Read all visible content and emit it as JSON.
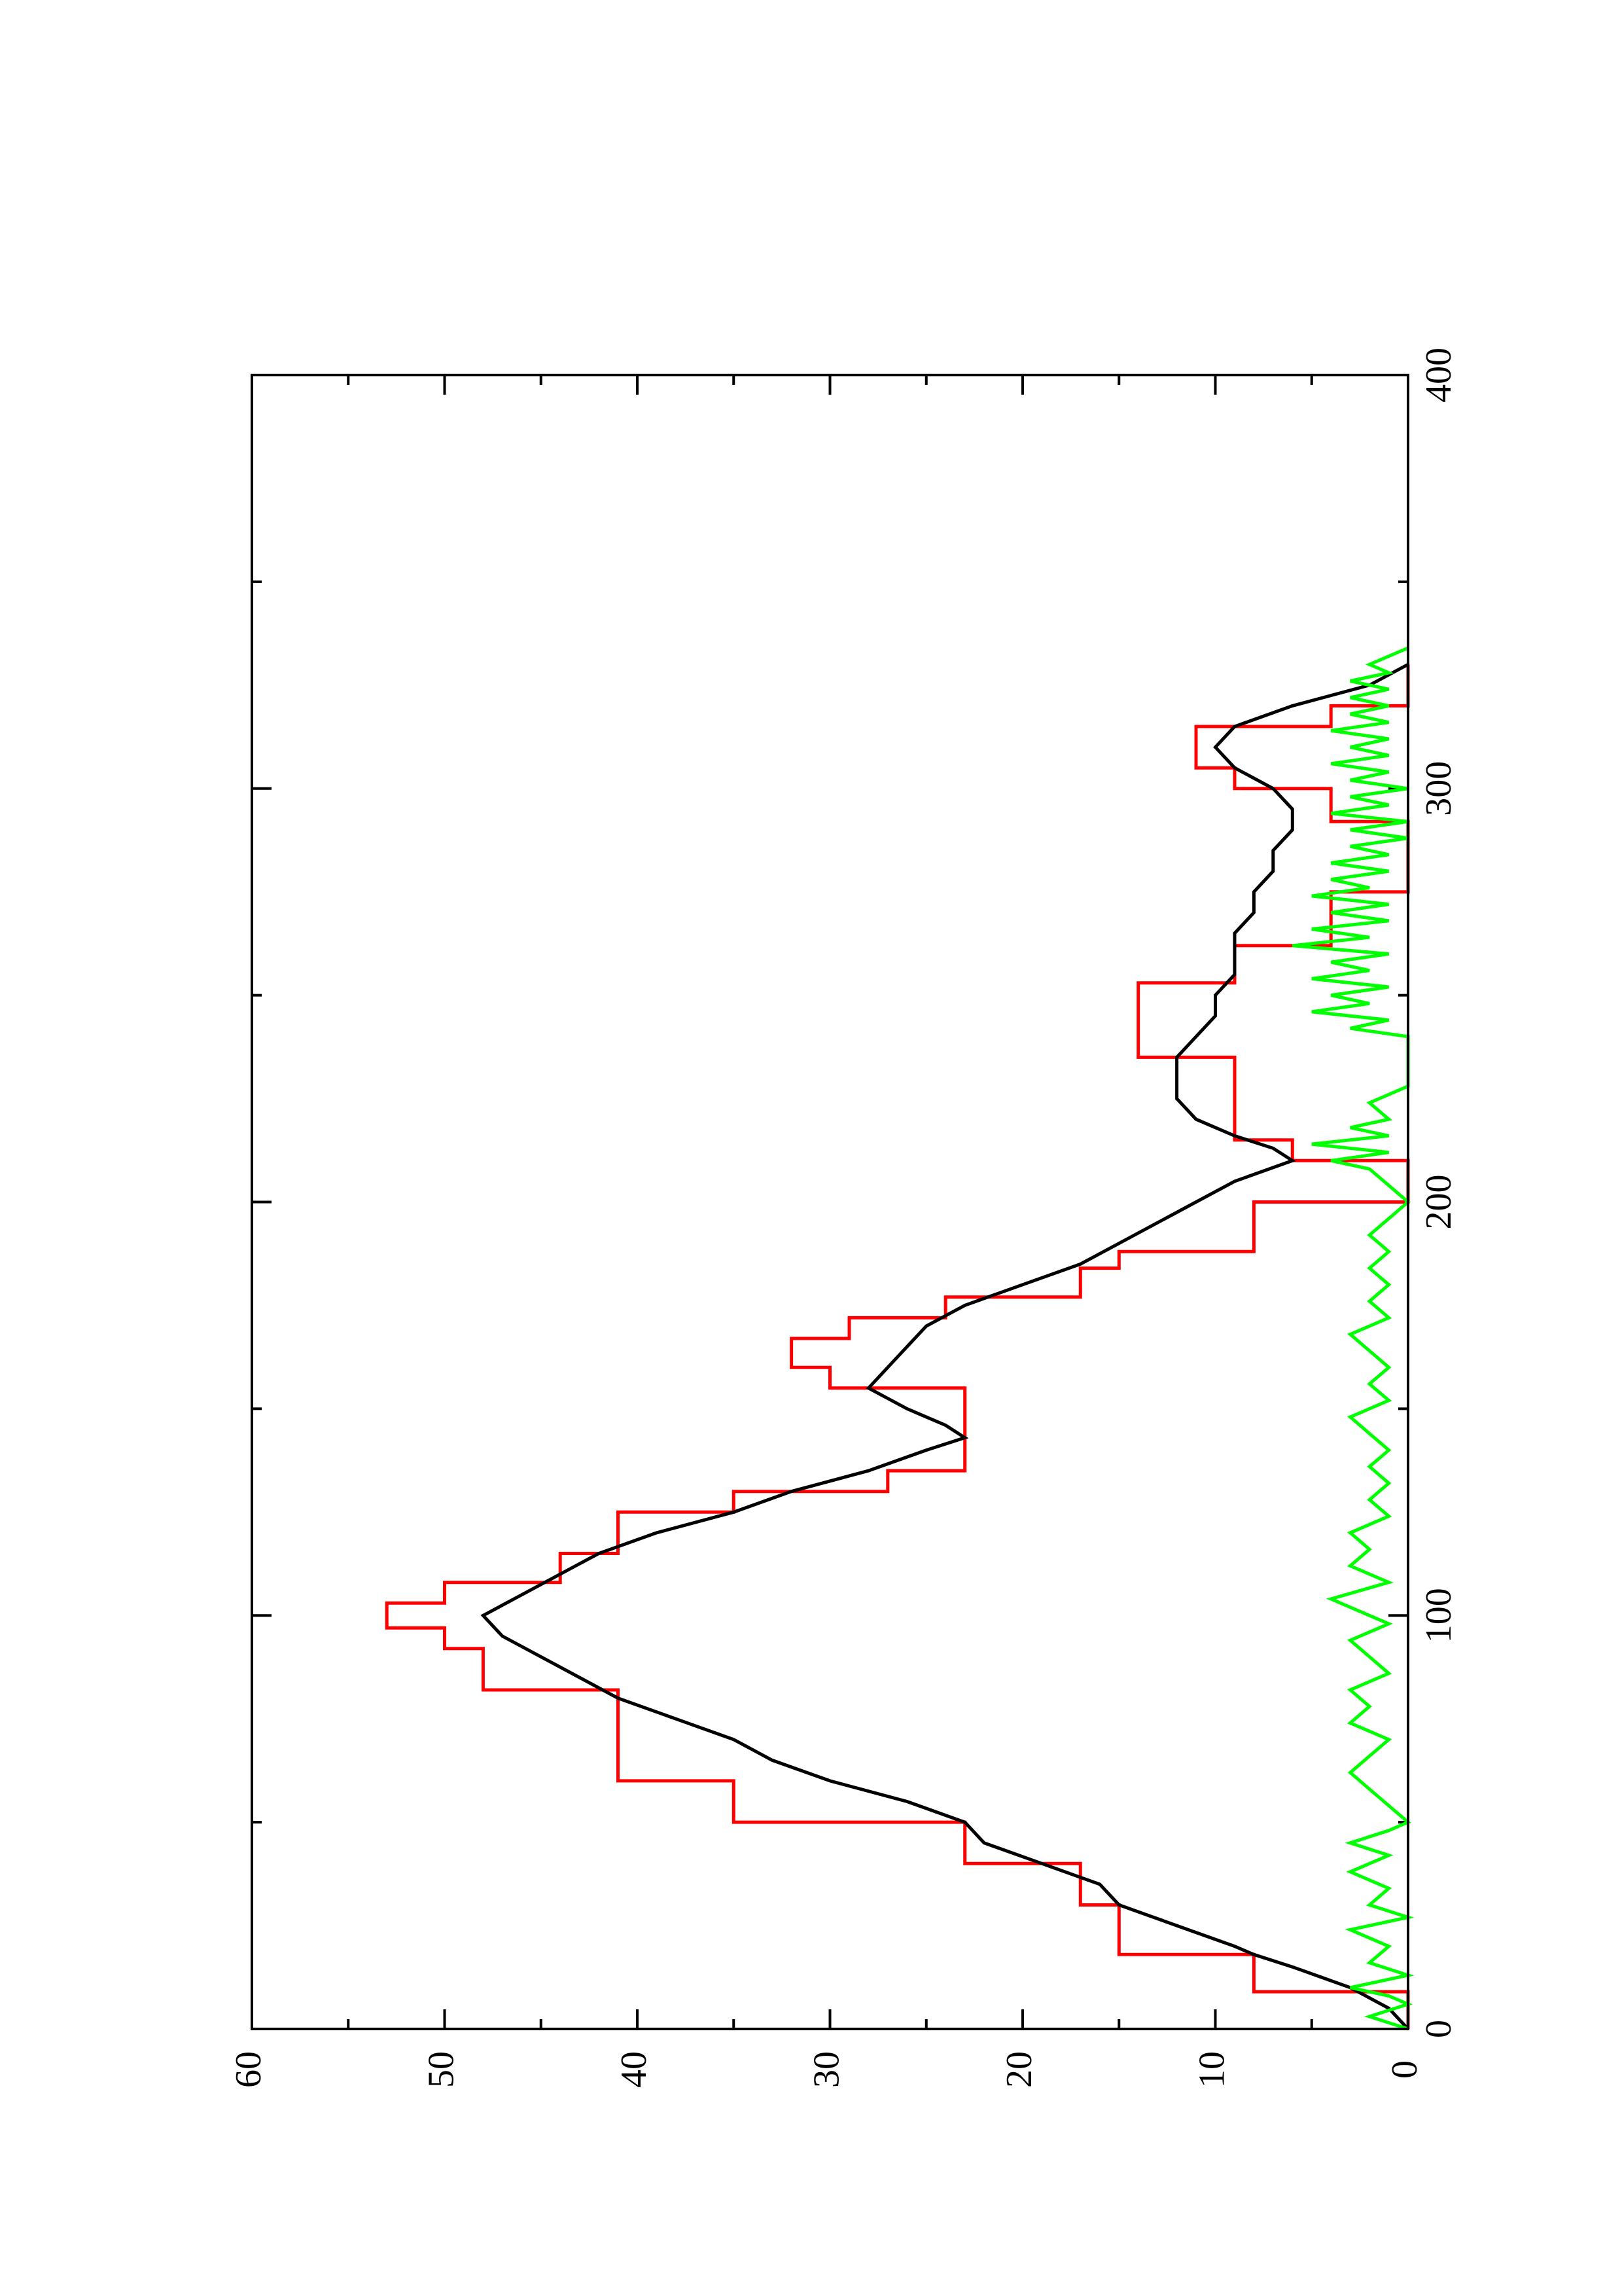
{
  "chart_data": {
    "type": "line",
    "orientation": "rotated-90-ccw",
    "title": "",
    "xlabel": "",
    "ylabel": "",
    "xlim": [
      0,
      400
    ],
    "ylim": [
      0,
      60
    ],
    "x_ticks": [
      0,
      100,
      200,
      300,
      400
    ],
    "x_tick_labels": [
      "0",
      "100",
      "200",
      "300",
      "400"
    ],
    "x_minor_ticks": [
      50,
      150,
      250,
      350
    ],
    "y_ticks": [
      0,
      10,
      20,
      30,
      40,
      50,
      60
    ],
    "y_tick_labels": [
      "0",
      "10",
      "20",
      "30",
      "40",
      "50",
      "60"
    ],
    "y_minor_ticks": [
      5,
      15,
      25,
      35,
      45,
      55
    ],
    "grid": false,
    "legend": "none",
    "series": [
      {
        "color": "#ff0000",
        "style": "step",
        "points": [
          [
            0,
            0
          ],
          [
            9,
            0
          ],
          [
            9,
            8
          ],
          [
            18,
            8
          ],
          [
            18,
            15
          ],
          [
            30,
            15
          ],
          [
            30,
            17
          ],
          [
            40,
            17
          ],
          [
            40,
            23
          ],
          [
            50,
            23
          ],
          [
            50,
            35
          ],
          [
            60,
            35
          ],
          [
            60,
            41
          ],
          [
            82,
            41
          ],
          [
            82,
            48
          ],
          [
            92,
            48
          ],
          [
            92,
            50
          ],
          [
            97,
            50
          ],
          [
            97,
            53
          ],
          [
            103,
            53
          ],
          [
            103,
            50
          ],
          [
            108,
            50
          ],
          [
            108,
            44
          ],
          [
            115,
            44
          ],
          [
            115,
            41
          ],
          [
            125,
            41
          ],
          [
            125,
            35
          ],
          [
            130,
            35
          ],
          [
            130,
            27
          ],
          [
            135,
            27
          ],
          [
            135,
            23
          ],
          [
            155,
            23
          ],
          [
            155,
            30
          ],
          [
            160,
            30
          ],
          [
            160,
            32
          ],
          [
            167,
            32
          ],
          [
            167,
            29
          ],
          [
            172,
            29
          ],
          [
            172,
            24
          ],
          [
            177,
            24
          ],
          [
            177,
            17
          ],
          [
            184,
            17
          ],
          [
            184,
            15
          ],
          [
            188,
            15
          ],
          [
            188,
            8
          ],
          [
            200,
            8
          ],
          [
            200,
            0
          ],
          [
            210,
            0
          ],
          [
            210,
            6
          ],
          [
            215,
            6
          ],
          [
            215,
            9
          ],
          [
            235,
            9
          ],
          [
            235,
            14
          ],
          [
            253,
            14
          ],
          [
            253,
            9
          ],
          [
            262,
            9
          ],
          [
            262,
            4
          ],
          [
            275,
            4
          ],
          [
            275,
            0
          ],
          [
            292,
            0
          ],
          [
            292,
            4
          ],
          [
            300,
            4
          ],
          [
            300,
            9
          ],
          [
            305,
            9
          ],
          [
            305,
            11
          ],
          [
            315,
            11
          ],
          [
            315,
            4
          ],
          [
            320,
            4
          ],
          [
            320,
            0
          ],
          [
            330,
            0
          ]
        ]
      },
      {
        "color": "#000000",
        "style": "line",
        "points": [
          [
            0,
            0
          ],
          [
            5,
            1
          ],
          [
            10,
            3
          ],
          [
            15,
            6
          ],
          [
            18,
            8
          ],
          [
            20,
            9
          ],
          [
            25,
            12
          ],
          [
            30,
            15
          ],
          [
            35,
            16
          ],
          [
            40,
            19
          ],
          [
            45,
            22
          ],
          [
            50,
            23
          ],
          [
            55,
            26
          ],
          [
            60,
            30
          ],
          [
            65,
            33
          ],
          [
            70,
            35
          ],
          [
            75,
            38
          ],
          [
            80,
            41
          ],
          [
            85,
            43
          ],
          [
            90,
            45
          ],
          [
            95,
            47
          ],
          [
            100,
            48
          ],
          [
            105,
            46
          ],
          [
            110,
            44
          ],
          [
            115,
            42
          ],
          [
            120,
            39
          ],
          [
            125,
            35
          ],
          [
            130,
            32
          ],
          [
            135,
            28
          ],
          [
            140,
            25
          ],
          [
            143,
            23
          ],
          [
            146,
            24
          ],
          [
            150,
            26
          ],
          [
            155,
            28
          ],
          [
            160,
            27
          ],
          [
            165,
            26
          ],
          [
            170,
            25
          ],
          [
            175,
            23
          ],
          [
            180,
            20
          ],
          [
            185,
            17
          ],
          [
            190,
            15
          ],
          [
            195,
            13
          ],
          [
            200,
            11
          ],
          [
            205,
            9
          ],
          [
            210,
            6
          ],
          [
            213,
            7
          ],
          [
            216,
            9
          ],
          [
            220,
            11
          ],
          [
            225,
            12
          ],
          [
            230,
            12
          ],
          [
            235,
            12
          ],
          [
            240,
            11
          ],
          [
            245,
            10
          ],
          [
            250,
            10
          ],
          [
            255,
            9
          ],
          [
            260,
            9
          ],
          [
            265,
            9
          ],
          [
            270,
            8
          ],
          [
            275,
            8
          ],
          [
            280,
            7
          ],
          [
            285,
            7
          ],
          [
            290,
            6
          ],
          [
            295,
            6
          ],
          [
            300,
            7
          ],
          [
            305,
            9
          ],
          [
            310,
            10
          ],
          [
            315,
            9
          ],
          [
            320,
            6
          ],
          [
            325,
            2
          ],
          [
            330,
            0
          ]
        ]
      },
      {
        "color": "#00ff00",
        "style": "line",
        "points": [
          [
            0,
            0
          ],
          [
            3,
            2
          ],
          [
            6,
            0
          ],
          [
            8,
            1
          ],
          [
            10,
            3
          ],
          [
            13,
            0
          ],
          [
            16,
            2
          ],
          [
            20,
            1
          ],
          [
            24,
            3
          ],
          [
            27,
            0
          ],
          [
            30,
            2
          ],
          [
            34,
            1
          ],
          [
            38,
            3
          ],
          [
            42,
            1
          ],
          [
            45,
            3
          ],
          [
            48,
            1
          ],
          [
            50,
            0
          ],
          [
            54,
            1
          ],
          [
            58,
            2
          ],
          [
            62,
            3
          ],
          [
            66,
            2
          ],
          [
            70,
            1
          ],
          [
            74,
            3
          ],
          [
            78,
            2
          ],
          [
            82,
            3
          ],
          [
            86,
            1
          ],
          [
            90,
            2
          ],
          [
            94,
            3
          ],
          [
            98,
            1
          ],
          [
            100,
            2
          ],
          [
            104,
            4
          ],
          [
            108,
            1
          ],
          [
            112,
            3
          ],
          [
            116,
            2
          ],
          [
            120,
            3
          ],
          [
            124,
            1
          ],
          [
            128,
            2
          ],
          [
            132,
            1
          ],
          [
            136,
            2
          ],
          [
            140,
            1
          ],
          [
            144,
            2
          ],
          [
            148,
            3
          ],
          [
            152,
            1
          ],
          [
            156,
            2
          ],
          [
            160,
            1
          ],
          [
            164,
            2
          ],
          [
            168,
            3
          ],
          [
            172,
            1
          ],
          [
            176,
            2
          ],
          [
            180,
            1
          ],
          [
            184,
            2
          ],
          [
            188,
            1
          ],
          [
            192,
            2
          ],
          [
            196,
            1
          ],
          [
            200,
            0
          ],
          [
            204,
            1
          ],
          [
            208,
            2
          ],
          [
            210,
            4
          ],
          [
            212,
            1
          ],
          [
            214,
            5
          ],
          [
            216,
            1
          ],
          [
            218,
            3
          ],
          [
            220,
            1
          ],
          [
            224,
            2
          ],
          [
            228,
            0
          ],
          [
            232,
            0
          ],
          [
            236,
            0
          ],
          [
            240,
            0
          ],
          [
            242,
            3
          ],
          [
            244,
            1
          ],
          [
            246,
            5
          ],
          [
            248,
            2
          ],
          [
            250,
            4
          ],
          [
            252,
            1
          ],
          [
            254,
            5
          ],
          [
            256,
            2
          ],
          [
            258,
            4
          ],
          [
            260,
            1
          ],
          [
            262,
            6
          ],
          [
            264,
            2
          ],
          [
            266,
            5
          ],
          [
            268,
            1
          ],
          [
            270,
            4
          ],
          [
            272,
            1
          ],
          [
            274,
            5
          ],
          [
            276,
            2
          ],
          [
            278,
            4
          ],
          [
            280,
            1
          ],
          [
            282,
            4
          ],
          [
            284,
            1
          ],
          [
            286,
            3
          ],
          [
            288,
            0
          ],
          [
            290,
            3
          ],
          [
            292,
            0
          ],
          [
            294,
            4
          ],
          [
            296,
            1
          ],
          [
            298,
            3
          ],
          [
            300,
            0
          ],
          [
            302,
            3
          ],
          [
            304,
            1
          ],
          [
            306,
            4
          ],
          [
            308,
            1
          ],
          [
            310,
            3
          ],
          [
            312,
            1
          ],
          [
            314,
            4
          ],
          [
            316,
            1
          ],
          [
            318,
            3
          ],
          [
            320,
            1
          ],
          [
            322,
            3
          ],
          [
            324,
            1
          ],
          [
            326,
            3
          ],
          [
            328,
            1
          ],
          [
            330,
            2
          ],
          [
            332,
            1
          ],
          [
            334,
            0
          ]
        ]
      }
    ]
  }
}
